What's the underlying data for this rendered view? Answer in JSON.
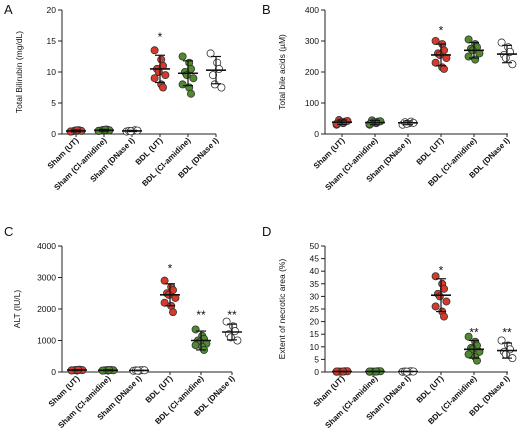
{
  "chart_data": [
    {
      "type": "scatter",
      "panel": "A",
      "ylabel": "Total Bilirubin (mg/dL)",
      "ylim": [
        0,
        20
      ],
      "yticks": [
        0,
        5,
        10,
        15,
        20
      ],
      "categories": [
        "Sham (UT)",
        "Sham (Cl-amidine)",
        "Sham (DNase I)",
        "BDL (UT)",
        "BDL (Cl-amidine)",
        "BDL (DNase I)"
      ],
      "groups": [
        {
          "color": "#d63a2b",
          "mean": 0.5,
          "sd": 0.15,
          "points": [
            0.4,
            0.5,
            0.6,
            0.45,
            0.55,
            0.5,
            0.4,
            0.6
          ]
        },
        {
          "color": "#4f8a2f",
          "mean": 0.6,
          "sd": 0.15,
          "points": [
            0.5,
            0.6,
            0.7,
            0.55,
            0.65,
            0.6,
            0.5,
            0.7
          ]
        },
        {
          "color": "#ffffff",
          "mean": 0.5,
          "sd": 0.1,
          "points": [
            0.4,
            0.5,
            0.6,
            0.5,
            0.45,
            0.55
          ]
        },
        {
          "color": "#d63a2b",
          "mean": 10.5,
          "sd": 2.2,
          "points": [
            13.5,
            12.0,
            11.0,
            10.5,
            10.0,
            9.5,
            9.0,
            8.0,
            7.5
          ]
        },
        {
          "color": "#4f8a2f",
          "mean": 9.8,
          "sd": 2.0,
          "points": [
            12.5,
            11.5,
            10.5,
            10.0,
            9.5,
            9.0,
            8.0,
            7.5,
            6.5
          ]
        },
        {
          "color": "#ffffff",
          "mean": 10.3,
          "sd": 2.2,
          "points": [
            13.0,
            11.5,
            10.5,
            9.5,
            8.0,
            7.5
          ]
        }
      ],
      "annotations": [
        {
          "category": "BDL (UT)",
          "text": "*",
          "y": 16.0
        }
      ]
    },
    {
      "type": "scatter",
      "panel": "B",
      "ylabel": "Total bile acids (µM)",
      "ylim": [
        0,
        400
      ],
      "yticks": [
        0,
        100,
        200,
        300,
        400
      ],
      "categories": [
        "Sham (UT)",
        "Sham (Cl-amidine)",
        "Sham (DNase I)",
        "BDL (UT)",
        "BDL (Cl-amidine)",
        "BDL (DNase I)"
      ],
      "groups": [
        {
          "color": "#d63a2b",
          "mean": 38,
          "sd": 7,
          "points": [
            30,
            35,
            40,
            45,
            38,
            42,
            33,
            36
          ]
        },
        {
          "color": "#4f8a2f",
          "mean": 37,
          "sd": 7,
          "points": [
            30,
            35,
            40,
            44,
            38,
            41,
            32,
            36
          ]
        },
        {
          "color": "#ffffff",
          "mean": 36,
          "sd": 6,
          "points": [
            30,
            35,
            40,
            38,
            33,
            36
          ]
        },
        {
          "color": "#d63a2b",
          "mean": 255,
          "sd": 35,
          "points": [
            300,
            290,
            270,
            260,
            255,
            245,
            230,
            215,
            210
          ]
        },
        {
          "color": "#4f8a2f",
          "mean": 270,
          "sd": 25,
          "points": [
            305,
            290,
            280,
            275,
            270,
            260,
            250,
            240
          ]
        },
        {
          "color": "#ffffff",
          "mean": 258,
          "sd": 28,
          "points": [
            295,
            280,
            265,
            255,
            245,
            225
          ]
        }
      ],
      "annotations": [
        {
          "category": "BDL (UT)",
          "text": "*",
          "y": 340
        }
      ]
    },
    {
      "type": "scatter",
      "panel": "C",
      "ylabel": "ALT (IU/L)",
      "ylim": [
        0,
        4000
      ],
      "yticks": [
        0,
        1000,
        2000,
        3000,
        4000
      ],
      "categories": [
        "Sham (UT)",
        "Sham (Cl-amidine)",
        "Sham (DNase I)",
        "BDL (UT)",
        "BDL (Cl-amidine)",
        "BDL (DNase I)"
      ],
      "groups": [
        {
          "color": "#d63a2b",
          "mean": 60,
          "sd": 15,
          "points": [
            50,
            60,
            70,
            55,
            65,
            60,
            50,
            70
          ]
        },
        {
          "color": "#4f8a2f",
          "mean": 55,
          "sd": 15,
          "points": [
            45,
            55,
            65,
            50,
            60,
            55,
            45,
            65
          ]
        },
        {
          "color": "#ffffff",
          "mean": 50,
          "sd": 10,
          "points": [
            40,
            50,
            60,
            50,
            45,
            55
          ]
        },
        {
          "color": "#d63a2b",
          "mean": 2450,
          "sd": 350,
          "points": [
            2900,
            2700,
            2600,
            2500,
            2450,
            2350,
            2200,
            2100,
            1900
          ]
        },
        {
          "color": "#4f8a2f",
          "mean": 1000,
          "sd": 300,
          "points": [
            1350,
            1150,
            1050,
            1000,
            950,
            900,
            850,
            800,
            700
          ]
        },
        {
          "color": "#ffffff",
          "mean": 1270,
          "sd": 250,
          "points": [
            1600,
            1450,
            1300,
            1200,
            1100,
            1000
          ]
        }
      ],
      "annotations": [
        {
          "category": "BDL (UT)",
          "text": "*",
          "y": 3350
        },
        {
          "category": "BDL (Cl-amidine)",
          "text": "**",
          "y": 1880
        },
        {
          "category": "BDL (DNase I)",
          "text": "**",
          "y": 1880
        }
      ]
    },
    {
      "type": "scatter",
      "panel": "D",
      "ylabel": "Extent of necrotic area (%)",
      "ylim": [
        0,
        50
      ],
      "yticks": [
        0,
        5,
        10,
        15,
        20,
        25,
        30,
        35,
        40,
        45,
        50
      ],
      "categories": [
        "Sham (UT)",
        "Sham (Cl-amidine)",
        "Sham (DNase I)",
        "BDL (UT)",
        "BDL (Cl-amidine)",
        "BDL (DNase I)"
      ],
      "groups": [
        {
          "color": "#d63a2b",
          "mean": 0.2,
          "sd": 0.1,
          "points": [
            0.1,
            0.2,
            0.3,
            0.2,
            0.1,
            0.3,
            0.2,
            0.2
          ]
        },
        {
          "color": "#4f8a2f",
          "mean": 0.2,
          "sd": 0.1,
          "points": [
            0.1,
            0.2,
            0.3,
            0.2,
            0.1,
            0.3,
            0.2,
            0.2
          ]
        },
        {
          "color": "#ffffff",
          "mean": 0.2,
          "sd": 0.1,
          "points": [
            0.1,
            0.2,
            0.3,
            0.2,
            0.1,
            0.2
          ]
        },
        {
          "color": "#d63a2b",
          "mean": 30.5,
          "sd": 6.5,
          "points": [
            38.0,
            35.0,
            33.0,
            31.0,
            30.0,
            28.0,
            26.0,
            24.0,
            22.0
          ]
        },
        {
          "color": "#4f8a2f",
          "mean": 9.0,
          "sd": 3.5,
          "points": [
            14.0,
            12.0,
            10.5,
            9.5,
            9.0,
            8.0,
            7.0,
            6.0,
            4.5
          ]
        },
        {
          "color": "#ffffff",
          "mean": 8.5,
          "sd": 3.0,
          "points": [
            12.5,
            10.5,
            9.0,
            8.0,
            7.0,
            5.5
          ]
        }
      ],
      "annotations": [
        {
          "category": "BDL (UT)",
          "text": "*",
          "y": 41.0
        },
        {
          "category": "BDL (Cl-amidine)",
          "text": "**",
          "y": 16.5
        },
        {
          "category": "BDL (DNase I)",
          "text": "**",
          "y": 16.5
        }
      ]
    }
  ]
}
